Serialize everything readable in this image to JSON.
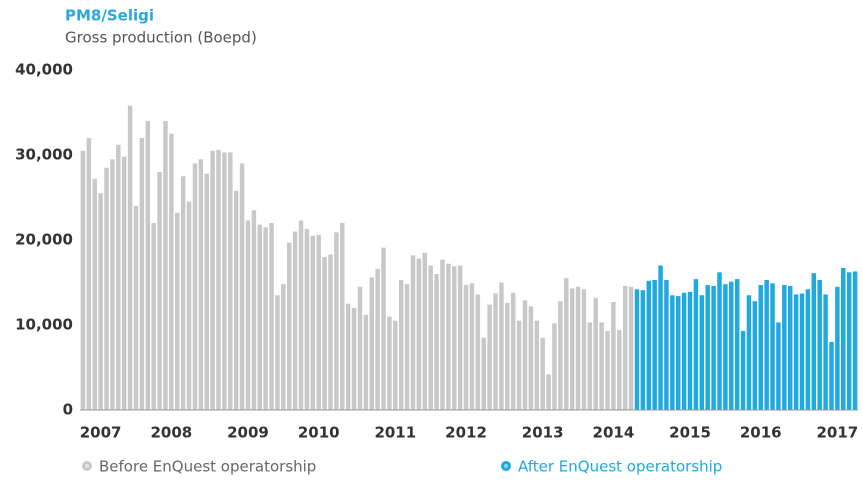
{
  "chart_data": {
    "type": "bar",
    "title": "PM8/Seligi",
    "subtitle": "Gross production (Boepd)",
    "categories": [
      null,
      null,
      null,
      "2007",
      null,
      null,
      null,
      null,
      null,
      null,
      null,
      null,
      null,
      null,
      null,
      "2008",
      null,
      null,
      null,
      null,
      null,
      null,
      null,
      null,
      null,
      null,
      null,
      null,
      "2009",
      null,
      null,
      null,
      null,
      null,
      null,
      null,
      null,
      null,
      null,
      null,
      "2010",
      null,
      null,
      null,
      null,
      null,
      null,
      null,
      null,
      null,
      null,
      null,
      null,
      "2011",
      null,
      null,
      null,
      null,
      null,
      null,
      null,
      null,
      null,
      null,
      null,
      "2012",
      null,
      null,
      null,
      null,
      null,
      null,
      null,
      null,
      null,
      null,
      null,
      null,
      "2013",
      null,
      null,
      null,
      null,
      null,
      null,
      null,
      null,
      null,
      null,
      null,
      "2014",
      null,
      null,
      null,
      null,
      null,
      null,
      null,
      null,
      null,
      null,
      null,
      null,
      "2015",
      null,
      null,
      null,
      null,
      null,
      null,
      null,
      null,
      null,
      null,
      null,
      "2016",
      null,
      null,
      null,
      null,
      null,
      null,
      null,
      null,
      null,
      null,
      null,
      null,
      "2017",
      null,
      null,
      null
    ],
    "series": [
      {
        "name": "Before EnQuest operatorship",
        "color": "#c8c8c8",
        "values": [
          30500,
          32000,
          27200,
          25500,
          28500,
          29500,
          31200,
          29800,
          35800,
          24000,
          32000,
          34000,
          22000,
          28000,
          34000,
          32500,
          23200,
          27500,
          24500,
          29000,
          29500,
          27800,
          30500,
          30600,
          30300,
          30300,
          25800,
          29000,
          22300,
          23500,
          21800,
          21500,
          22000,
          13500,
          14800,
          19700,
          21000,
          22300,
          21300,
          20500,
          20600,
          18000,
          18300,
          20900,
          22000,
          12500,
          12000,
          14500,
          11200,
          15600,
          16600,
          19100,
          11000,
          10500,
          15300,
          14800,
          18200,
          17800,
          18500,
          17000,
          16000,
          17700,
          17200,
          16900,
          17000,
          14700,
          14900,
          13600,
          8500,
          12400,
          13700,
          15000,
          12600,
          13800,
          10500,
          12900,
          12200,
          10500,
          8500,
          4200,
          10200,
          12800,
          15500,
          14300,
          14500,
          14200,
          10300,
          13200,
          10300,
          9300,
          12700,
          9400,
          14600,
          14500,
          null,
          null,
          null,
          null,
          null,
          null,
          null,
          null,
          null,
          null,
          null,
          null,
          null,
          null,
          null,
          null,
          null,
          null,
          null,
          null,
          null,
          null,
          null,
          null,
          null,
          null,
          null,
          null,
          null,
          null,
          null,
          null,
          null,
          null,
          null,
          null,
          null,
          null
        ]
      },
      {
        "name": "After EnQuest operatorship",
        "color": "#1ea9df",
        "values": [
          null,
          null,
          null,
          null,
          null,
          null,
          null,
          null,
          null,
          null,
          null,
          null,
          null,
          null,
          null,
          null,
          null,
          null,
          null,
          null,
          null,
          null,
          null,
          null,
          null,
          null,
          null,
          null,
          null,
          null,
          null,
          null,
          null,
          null,
          null,
          null,
          null,
          null,
          null,
          null,
          null,
          null,
          null,
          null,
          null,
          null,
          null,
          null,
          null,
          null,
          null,
          null,
          null,
          null,
          null,
          null,
          null,
          null,
          null,
          null,
          null,
          null,
          null,
          null,
          null,
          null,
          null,
          null,
          null,
          null,
          null,
          null,
          null,
          null,
          null,
          null,
          null,
          null,
          null,
          null,
          null,
          null,
          null,
          null,
          null,
          null,
          null,
          null,
          null,
          null,
          null,
          null,
          null,
          null,
          14200,
          14100,
          15200,
          15300,
          17000,
          15300,
          13500,
          13400,
          13800,
          13900,
          15400,
          13500,
          14700,
          14600,
          16200,
          14800,
          15100,
          15400,
          9300,
          13500,
          12800,
          14700,
          15300,
          14900,
          10300,
          14700,
          14600,
          13600,
          13700,
          14200,
          16100,
          15300,
          13600,
          8000,
          14500,
          16700,
          16200,
          16300
        ]
      }
    ],
    "ylim": [
      0,
      40000
    ],
    "yticks": [
      0,
      {
        "value": 10000,
        "label": "10,000"
      },
      {
        "value": 20000,
        "label": "20,000"
      },
      {
        "value": 30000,
        "label": "30,000"
      },
      {
        "value": 40000,
        "label": "40,000"
      }
    ],
    "legend": "bottom",
    "title_color": "#29a8df"
  }
}
